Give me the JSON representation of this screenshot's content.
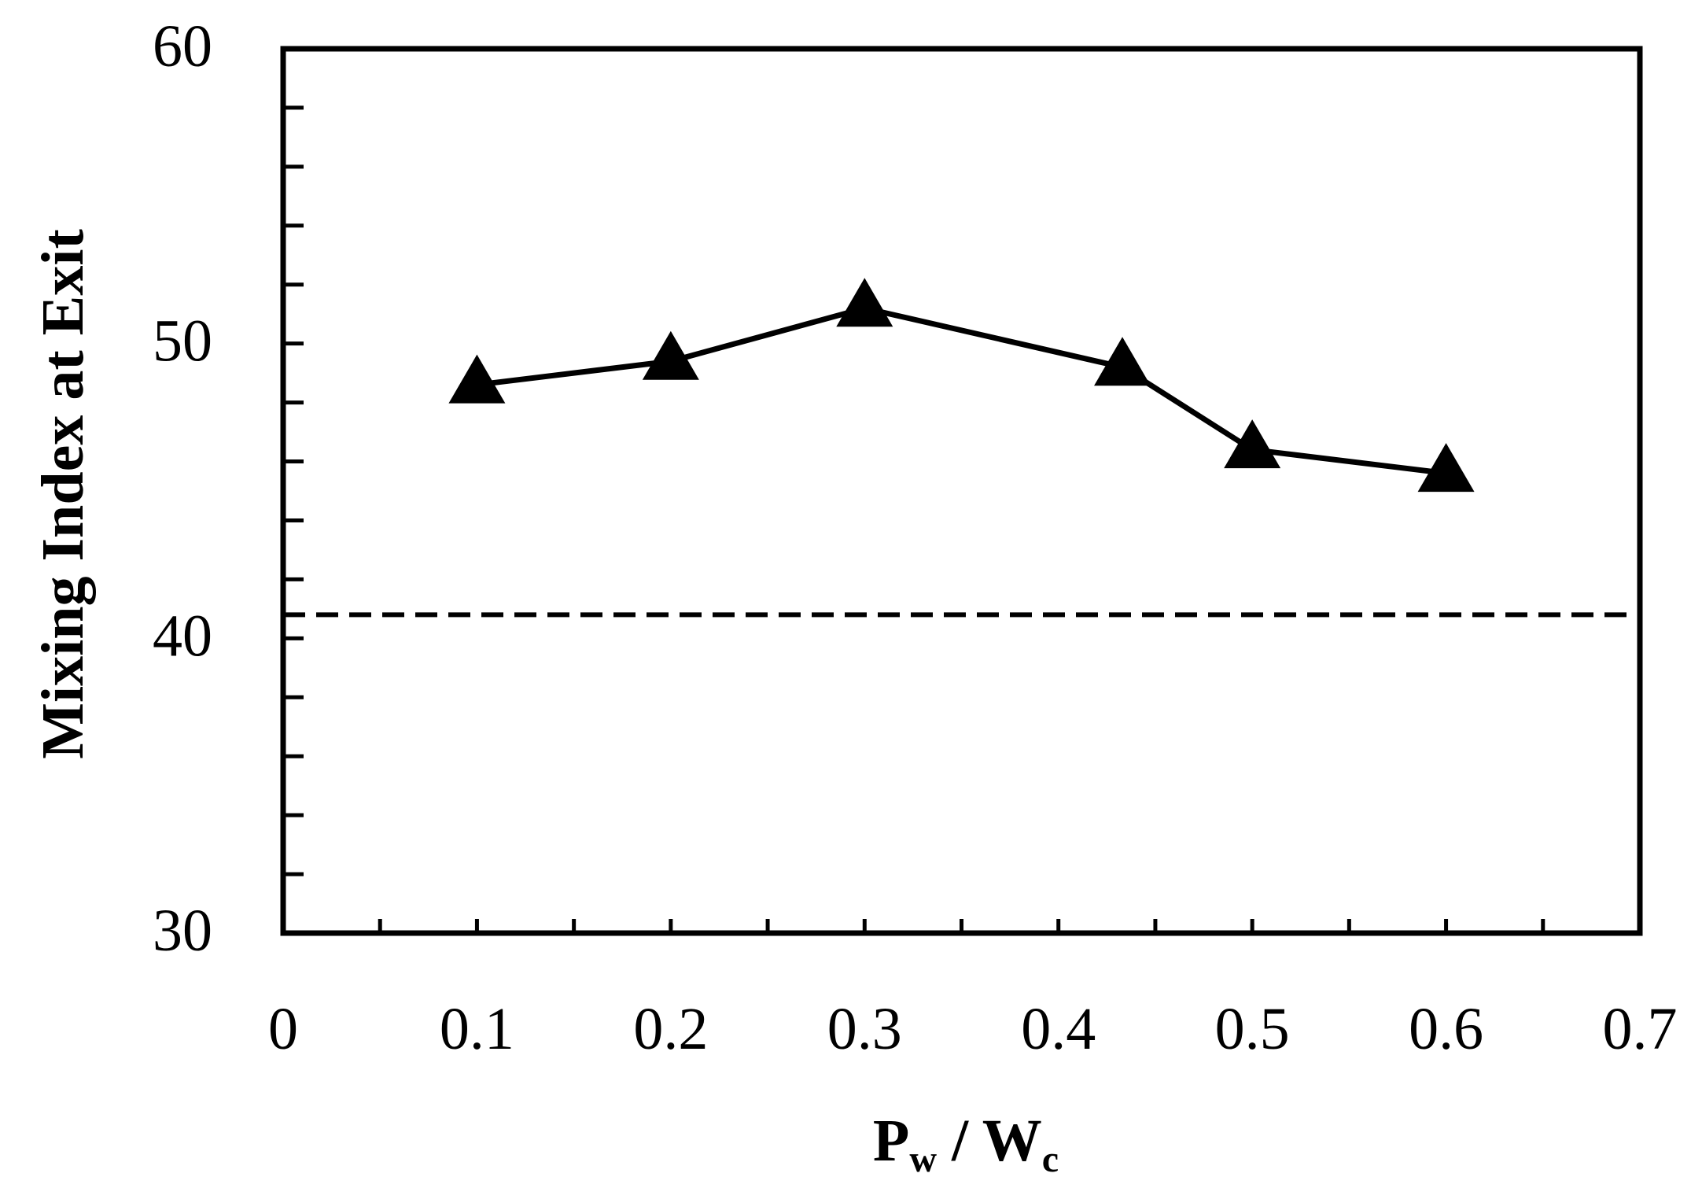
{
  "chart_data": {
    "type": "line",
    "xlabel": {
      "main1": "P",
      "sub1": "w",
      "sep": " / ",
      "main2": "W",
      "sub2": "c"
    },
    "ylabel": "Mixing Index at Exit",
    "xlim": [
      0,
      0.7
    ],
    "ylim": [
      30,
      60
    ],
    "x_ticks": [
      "0",
      "0.1",
      "0.2",
      "0.3",
      "0.4",
      "0.5",
      "0.6",
      "0.7"
    ],
    "y_ticks": [
      "30",
      "40",
      "50",
      "60"
    ],
    "x_tick_values": [
      0,
      0.1,
      0.2,
      0.3,
      0.4,
      0.5,
      0.6,
      0.7
    ],
    "y_tick_values": [
      30,
      40,
      50,
      60
    ],
    "x_minor_step": 0.05,
    "y_minor_step": 2,
    "grid": false,
    "legend": "none",
    "series": [
      {
        "marker": "triangle",
        "color": "#000000",
        "x": [
          0.1,
          0.2,
          0.3,
          0.433,
          0.5,
          0.6
        ],
        "y": [
          48.6,
          49.4,
          51.2,
          49.2,
          46.4,
          45.6
        ]
      }
    ],
    "reference_lines": [
      {
        "y": 40.8,
        "style": "dashed",
        "color": "#000000"
      }
    ]
  }
}
